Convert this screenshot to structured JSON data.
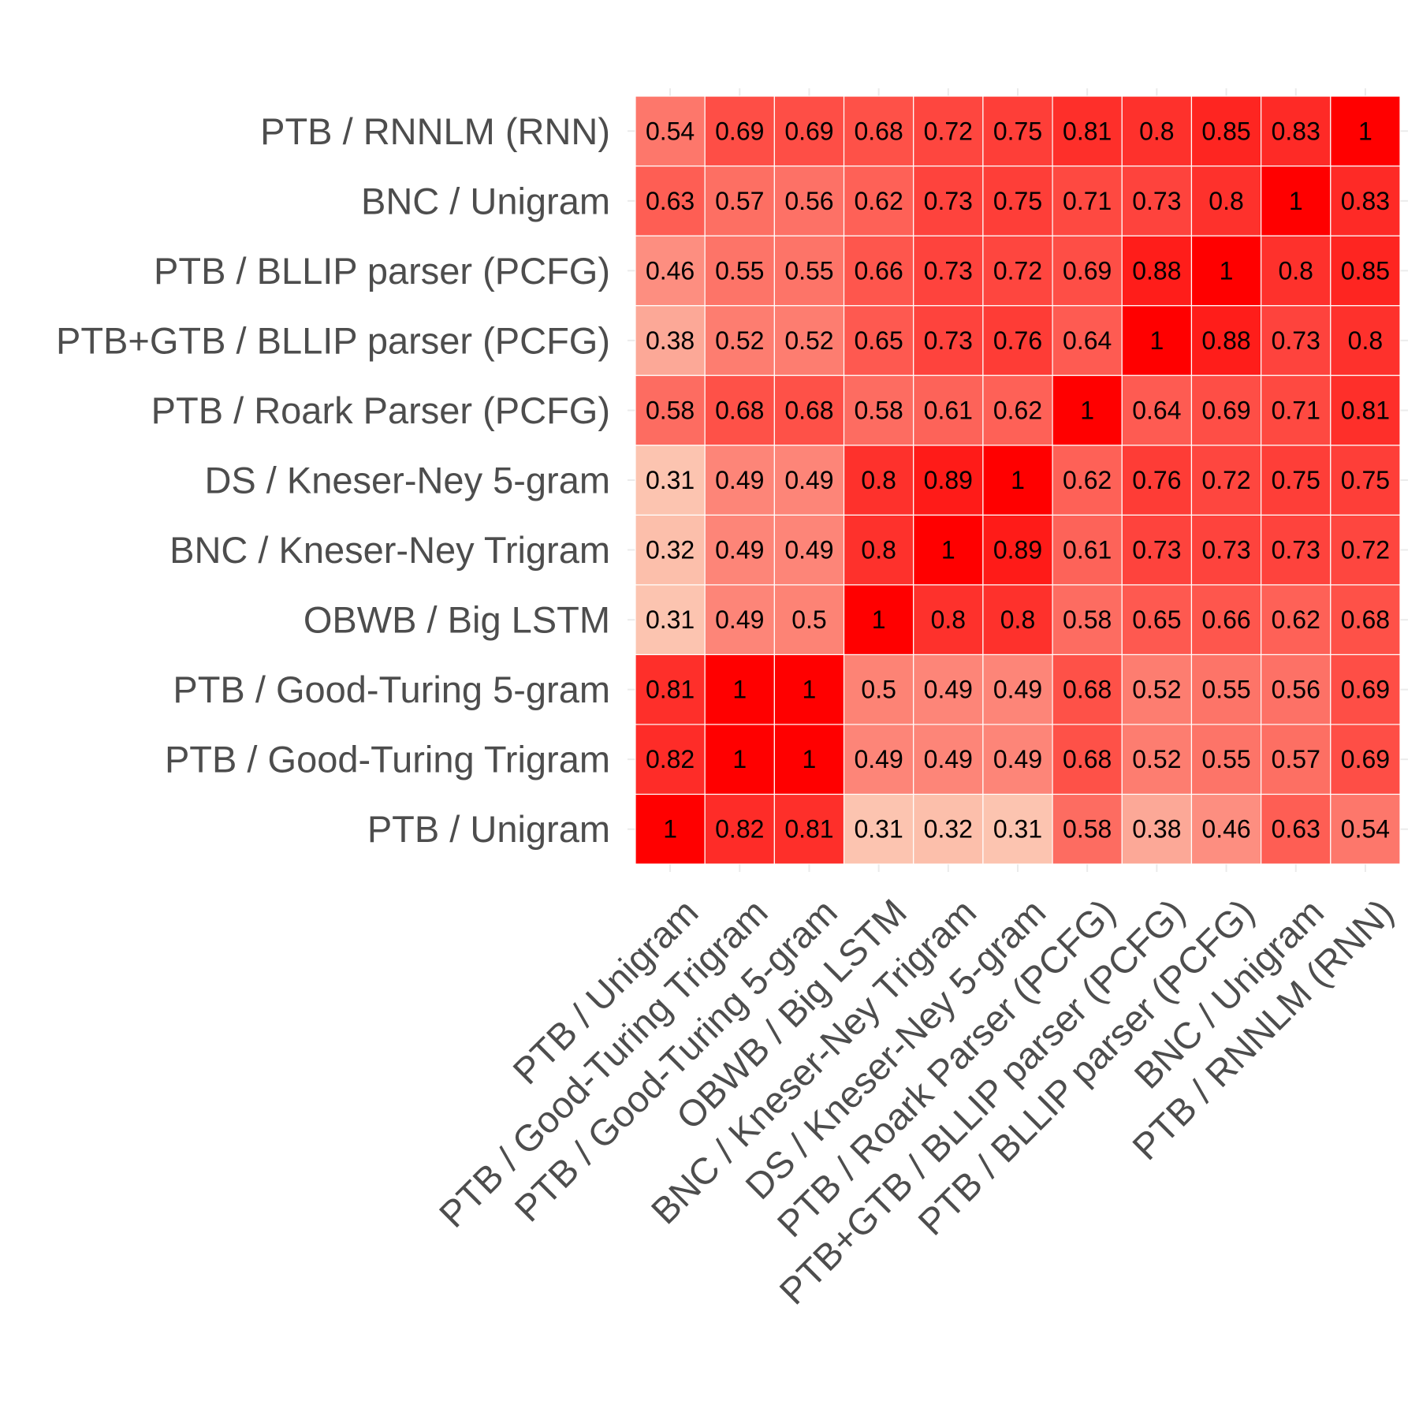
{
  "chart_data": {
    "type": "heatmap",
    "x_categories": [
      "PTB / Unigram",
      "PTB / Good-Turing Trigram",
      "PTB / Good-Turing 5-gram",
      "OBWB / Big LSTM",
      "BNC / Kneser-Ney Trigram",
      "DS / Kneser-Ney 5-gram",
      "PTB / Roark Parser (PCFG)",
      "PTB+GTB / BLLIP parser (PCFG)",
      "PTB / BLLIP parser (PCFG)",
      "BNC / Unigram",
      "PTB / RNNLM (RNN)"
    ],
    "y_categories": [
      "PTB / Unigram",
      "PTB / Good-Turing Trigram",
      "PTB / Good-Turing 5-gram",
      "OBWB / Big LSTM",
      "BNC / Kneser-Ney Trigram",
      "DS / Kneser-Ney 5-gram",
      "PTB / Roark Parser (PCFG)",
      "PTB+GTB / BLLIP parser (PCFG)",
      "PTB / BLLIP parser (PCFG)",
      "BNC / Unigram",
      "PTB / RNNLM (RNN)"
    ],
    "values": [
      [
        1,
        0.82,
        0.81,
        0.31,
        0.32,
        0.31,
        0.58,
        0.38,
        0.46,
        0.63,
        0.54
      ],
      [
        0.82,
        1,
        1,
        0.49,
        0.49,
        0.49,
        0.68,
        0.52,
        0.55,
        0.57,
        0.69
      ],
      [
        0.81,
        1,
        1,
        0.5,
        0.49,
        0.49,
        0.68,
        0.52,
        0.55,
        0.56,
        0.69
      ],
      [
        0.31,
        0.49,
        0.5,
        1,
        0.8,
        0.8,
        0.58,
        0.65,
        0.66,
        0.62,
        0.68
      ],
      [
        0.32,
        0.49,
        0.49,
        0.8,
        1,
        0.89,
        0.61,
        0.73,
        0.73,
        0.73,
        0.72
      ],
      [
        0.31,
        0.49,
        0.49,
        0.8,
        0.89,
        1,
        0.62,
        0.76,
        0.72,
        0.75,
        0.75
      ],
      [
        0.58,
        0.68,
        0.68,
        0.58,
        0.61,
        0.62,
        1,
        0.64,
        0.69,
        0.71,
        0.81
      ],
      [
        0.38,
        0.52,
        0.52,
        0.65,
        0.73,
        0.76,
        0.64,
        1,
        0.88,
        0.73,
        0.8
      ],
      [
        0.46,
        0.55,
        0.55,
        0.66,
        0.73,
        0.72,
        0.69,
        0.88,
        1,
        0.8,
        0.85
      ],
      [
        0.63,
        0.57,
        0.56,
        0.62,
        0.73,
        0.75,
        0.71,
        0.73,
        0.8,
        1,
        0.83
      ],
      [
        0.54,
        0.69,
        0.69,
        0.68,
        0.72,
        0.75,
        0.81,
        0.8,
        0.85,
        0.83,
        1
      ]
    ],
    "value_range": [
      0.31,
      1
    ],
    "colors": {
      "low": "#ffffff",
      "high": "#ff0000",
      "grid": "#ebebeb"
    },
    "legend": "none"
  }
}
